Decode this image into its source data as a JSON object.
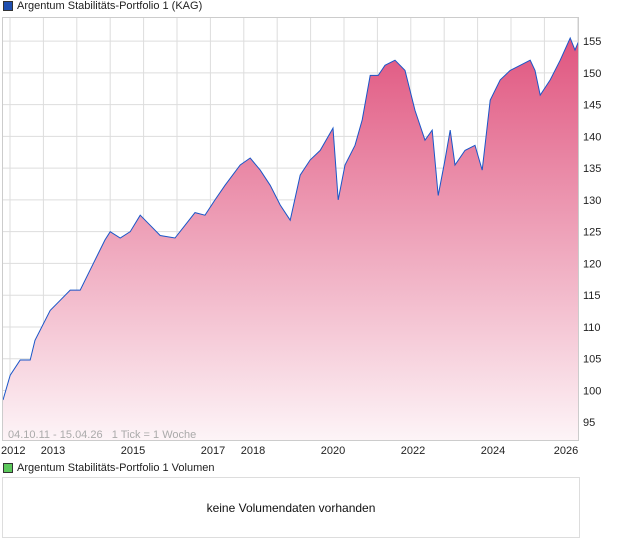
{
  "legend_main": "Argentum Stabilitäts-Portfolio 1 (KAG)",
  "legend_volume": "Argentum Stabilitäts-Portfolio 1 Volumen",
  "volume_message": "keine Volumendaten vorhanden",
  "colors": {
    "line": "#1a56c8",
    "fill_top": "#e0557f",
    "main_square": "#1f4fb0",
    "volume_square": "#5cc85c"
  },
  "chart_data": {
    "type": "area",
    "title": "Argentum Stabilitäts-Portfolio 1 (KAG)",
    "range_label": "04.10.11 - 15.04.26   1 Tick = 1 Woche",
    "xlabel": "",
    "ylabel": "",
    "xlim": [
      2011.75,
      2026.13
    ],
    "ylim": [
      92.2,
      158.8
    ],
    "yticks": [
      95,
      100,
      105,
      110,
      115,
      120,
      125,
      130,
      135,
      140,
      145,
      150,
      155
    ],
    "xticks": [
      {
        "label": "2012",
        "x": 2012
      },
      {
        "label": "2013",
        "x": 2013
      },
      {
        "label": "2015",
        "x": 2015
      },
      {
        "label": "2017",
        "x": 2017
      },
      {
        "label": "2018",
        "x": 2018
      },
      {
        "label": "2020",
        "x": 2020
      },
      {
        "label": "2022",
        "x": 2022
      },
      {
        "label": "2024",
        "x": 2024
      },
      {
        "label": "2026",
        "x": 2026
      }
    ],
    "x": [
      2011.75,
      2011.93,
      2012.18,
      2012.43,
      2012.55,
      2012.93,
      2013.18,
      2013.43,
      2013.68,
      2013.93,
      2014.3,
      2014.43,
      2014.68,
      2014.93,
      2015.18,
      2015.43,
      2015.68,
      2016.05,
      2016.3,
      2016.55,
      2016.8,
      2017.05,
      2017.3,
      2017.68,
      2017.93,
      2018.18,
      2018.43,
      2018.68,
      2018.93,
      2019.18,
      2019.43,
      2019.68,
      2020.0,
      2020.13,
      2020.3,
      2020.55,
      2020.73,
      2020.93,
      2021.13,
      2021.3,
      2021.55,
      2021.8,
      2022.05,
      2022.3,
      2022.48,
      2022.63,
      2022.8,
      2022.93,
      2023.05,
      2023.3,
      2023.55,
      2023.73,
      2023.93,
      2024.18,
      2024.43,
      2024.68,
      2024.93,
      2025.05,
      2025.18,
      2025.43,
      2025.68,
      2025.93,
      2026.05,
      2026.13
    ],
    "values": [
      98.5,
      102.4,
      104.8,
      104.8,
      107.9,
      112.6,
      114.2,
      115.8,
      115.8,
      119,
      123.7,
      125,
      124,
      125,
      127.6,
      126,
      124.4,
      124,
      126,
      128,
      127.6,
      130,
      132.3,
      135.5,
      136.6,
      134.7,
      132.3,
      129.2,
      126.8,
      133.9,
      136.3,
      137.8,
      141.3,
      130,
      135.5,
      138.6,
      142.6,
      149.6,
      149.6,
      151.2,
      152,
      150.4,
      144.1,
      139.4,
      141,
      130.7,
      136.3,
      141,
      135.5,
      137.8,
      138.6,
      134.7,
      145.7,
      148.9,
      150.4,
      151.2,
      152,
      150.4,
      146.5,
      148.9,
      152,
      155.5,
      153.6,
      154.8
    ]
  }
}
